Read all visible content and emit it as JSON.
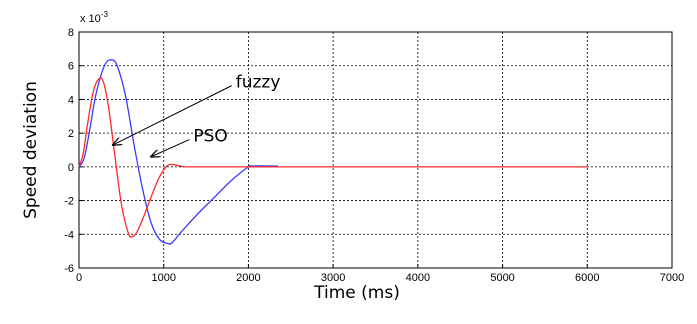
{
  "chart_data": {
    "type": "line",
    "xlabel": "Time (ms)",
    "ylabel": "Speed deviation",
    "y_multiplier_base": "x 10",
    "y_multiplier_exp": "-3",
    "xlim": [
      0,
      7000
    ],
    "ylim": [
      -6,
      8
    ],
    "xticks": [
      "0",
      "1000",
      "2000",
      "3000",
      "4000",
      "5000",
      "6000",
      "7000"
    ],
    "yticks": [
      "8",
      "6",
      "4",
      "2",
      "0",
      "-2",
      "-4",
      "-6"
    ],
    "grid": true,
    "series": [
      {
        "name": "fuzzy",
        "color": "#3a3aff",
        "x": [
          0,
          60,
          120,
          200,
          300,
          380,
          450,
          550,
          650,
          750,
          850,
          950,
          1050,
          1100,
          1200,
          1400,
          1600,
          1800,
          2000,
          2050,
          2350
        ],
        "y": [
          0,
          0.5,
          2.0,
          4.3,
          6.0,
          6.35,
          6.0,
          4.2,
          1.3,
          -1.3,
          -3.3,
          -4.3,
          -4.55,
          -4.5,
          -3.9,
          -2.8,
          -1.8,
          -0.8,
          0,
          0.05,
          0.05
        ]
      },
      {
        "name": "PSO",
        "color": "#ff2a2a",
        "x": [
          0,
          50,
          100,
          170,
          240,
          290,
          350,
          420,
          500,
          580,
          620,
          680,
          760,
          850,
          950,
          1050,
          1150,
          1200,
          1300,
          2000,
          4000,
          6000
        ],
        "y": [
          0,
          0.8,
          2.5,
          4.5,
          5.25,
          5.0,
          3.5,
          0.8,
          -2.2,
          -3.9,
          -4.15,
          -3.9,
          -3.0,
          -1.8,
          -0.6,
          0.1,
          0.1,
          0.05,
          0,
          0,
          0,
          0
        ]
      }
    ],
    "annotations": [
      {
        "text": "fuzzy",
        "x": 1850,
        "y": 4.7,
        "arrow_to": [
          400,
          1.3
        ]
      },
      {
        "text": "PSO",
        "x": 1350,
        "y": 1.5,
        "arrow_to": [
          850,
          0.6
        ]
      }
    ]
  }
}
